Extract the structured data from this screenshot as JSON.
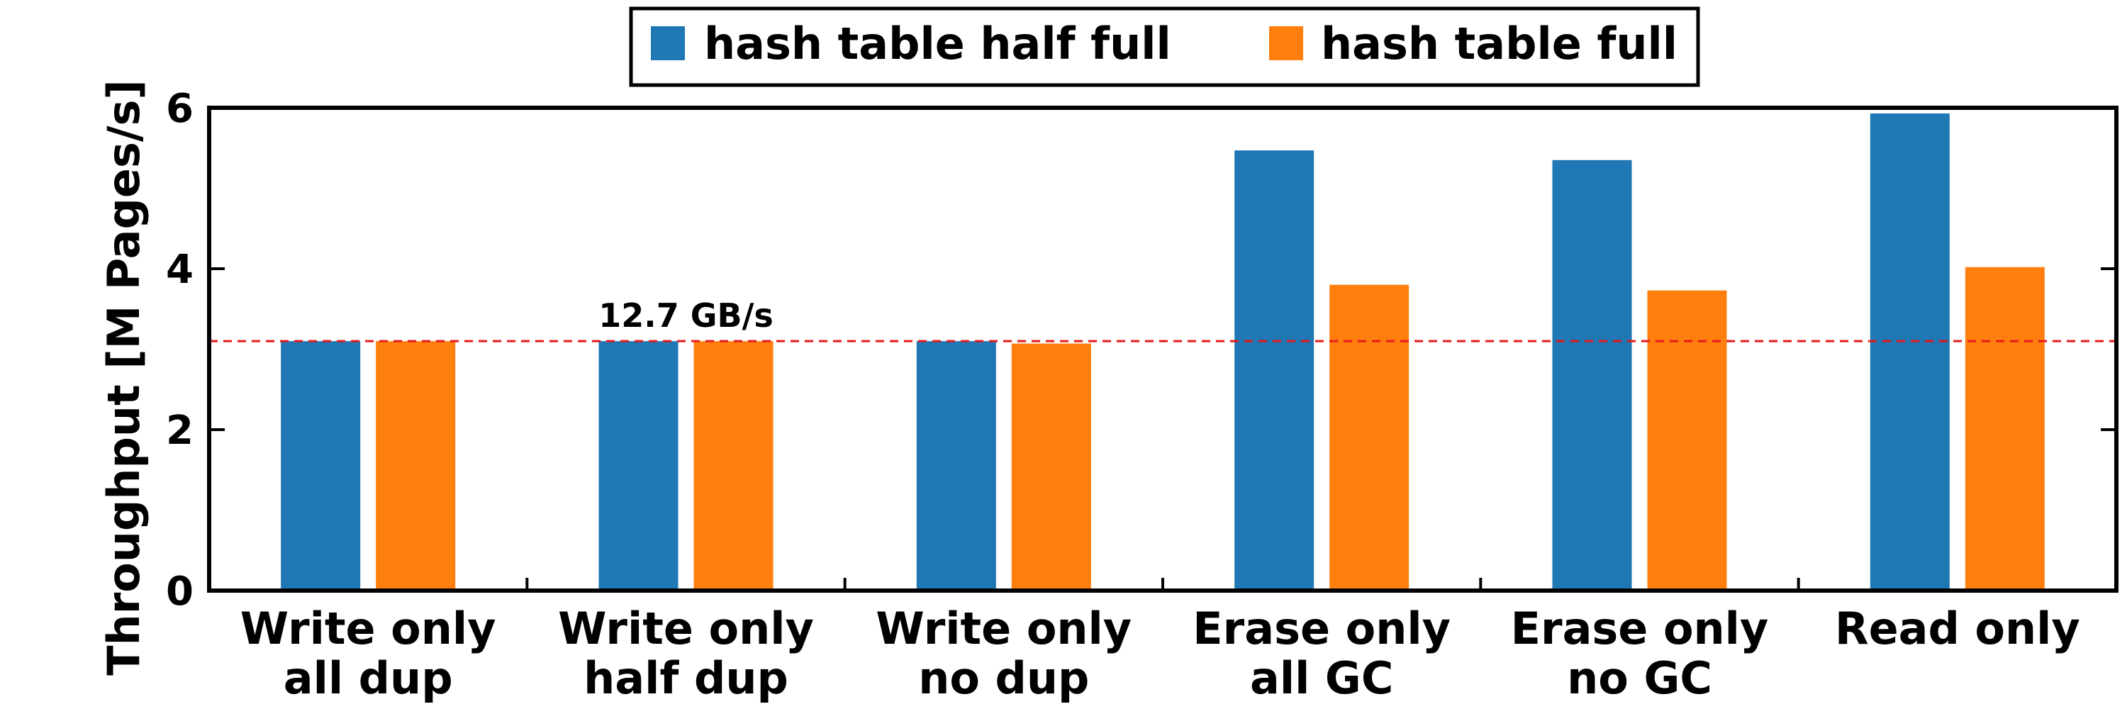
{
  "colors": {
    "series_1": "#1f77b4",
    "series_2": "#ff7f0e",
    "reference_line": "#e41a1c",
    "frame": "#000000"
  },
  "chart_data": {
    "type": "bar",
    "title": "",
    "xlabel": "",
    "ylabel": "Throughput [M Pages/s]",
    "ylim": [
      0,
      6
    ],
    "yticks": [
      0,
      2,
      4,
      6
    ],
    "grid": false,
    "legend_position": "top-center",
    "categories": [
      [
        "Write only",
        "all dup"
      ],
      [
        "Write only",
        "half dup"
      ],
      [
        "Write only",
        "no dup"
      ],
      [
        "Erase only",
        "all GC"
      ],
      [
        "Erase only",
        "no GC"
      ],
      [
        "Read only"
      ]
    ],
    "series": [
      {
        "name": "hash table half full",
        "values": [
          3.1,
          3.1,
          3.1,
          5.47,
          5.35,
          5.93
        ]
      },
      {
        "name": "hash table full",
        "values": [
          3.1,
          3.1,
          3.07,
          3.8,
          3.73,
          4.02
        ]
      }
    ],
    "reference_line": {
      "y": 3.1,
      "style": "dashed",
      "label": "12.7 GB/s"
    }
  }
}
